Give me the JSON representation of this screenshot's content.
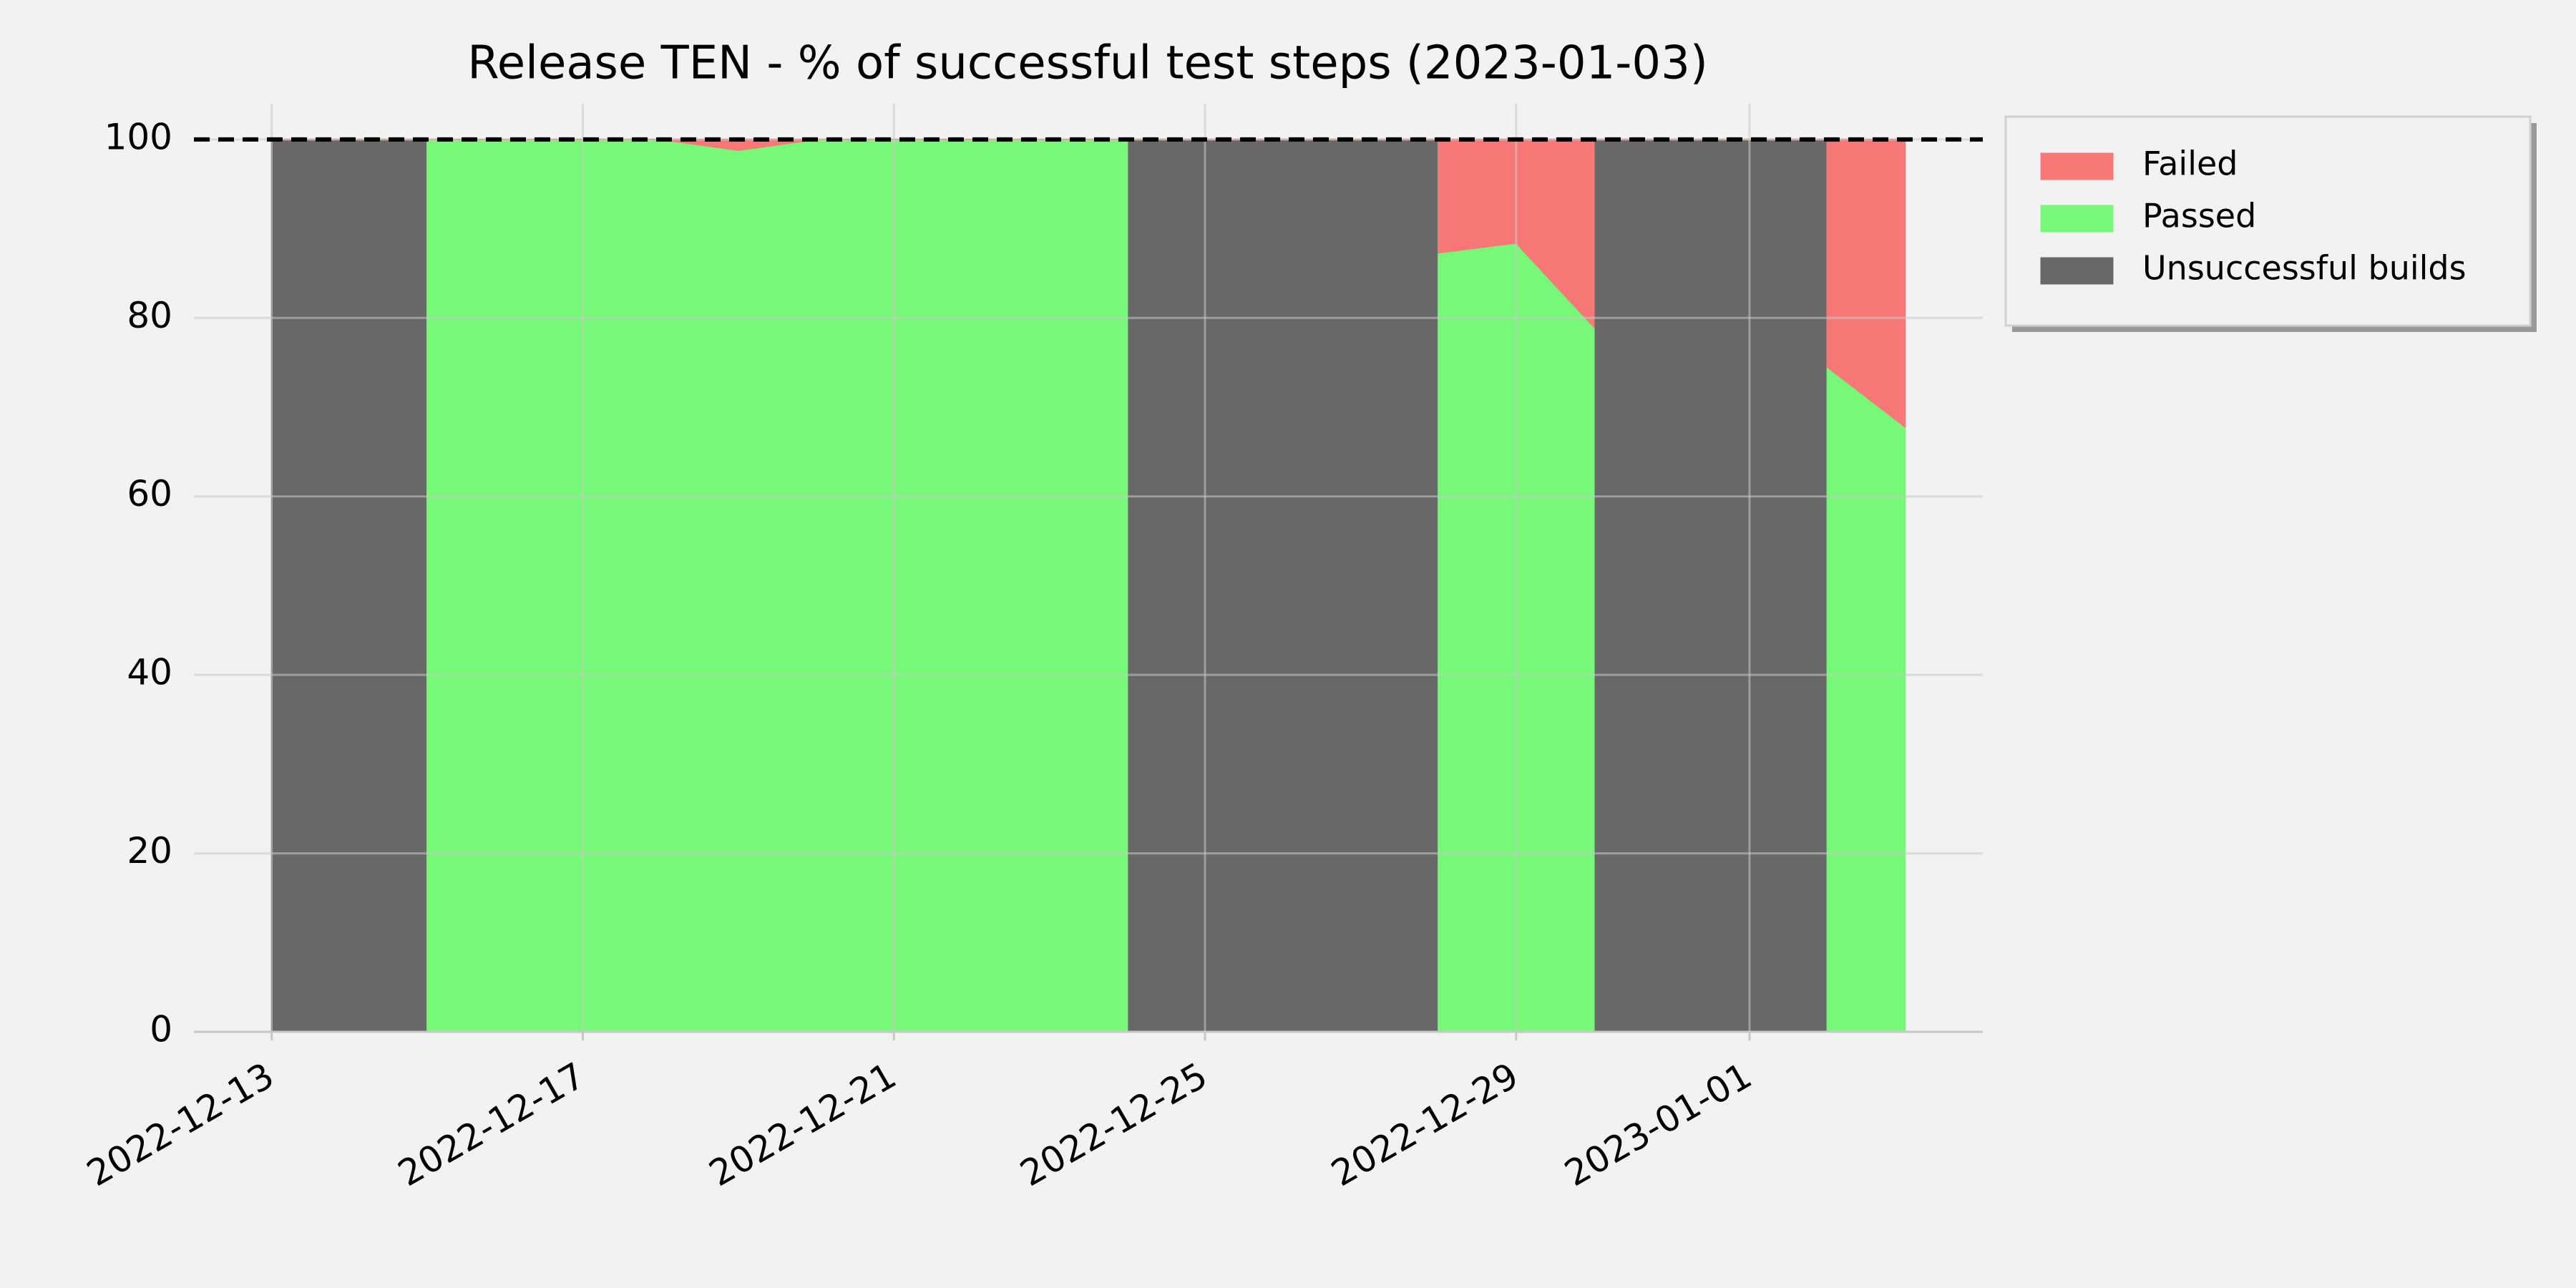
{
  "chart_data": {
    "type": "stacked_area",
    "title": "Release TEN - % of successful test steps (2023-01-03)",
    "x": [
      "2022-12-13",
      "2022-12-14",
      "2022-12-15",
      "2022-12-15",
      "2022-12-16",
      "2022-12-17",
      "2022-12-18",
      "2022-12-19",
      "2022-12-20",
      "2022-12-21",
      "2022-12-22",
      "2022-12-23",
      "2022-12-24",
      "2022-12-24",
      "2022-12-25",
      "2022-12-26",
      "2022-12-27",
      "2022-12-28",
      "2022-12-28",
      "2022-12-29",
      "2022-12-30",
      "2022-12-30",
      "2022-12-31",
      "2023-01-01",
      "2023-01-02",
      "2023-01-02",
      "2023-01-03"
    ],
    "series": [
      {
        "name": "Unsuccessful builds",
        "color": "#686868",
        "values": [
          100,
          100,
          100,
          0,
          0,
          0,
          0,
          0,
          0,
          0,
          0,
          0,
          0,
          100,
          100,
          100,
          100,
          100,
          0,
          0,
          0,
          100,
          100,
          100,
          100,
          0,
          0
        ]
      },
      {
        "name": "Passed",
        "color": "#78f878",
        "values": [
          0,
          0,
          0,
          100,
          100,
          100,
          100,
          98.8,
          100,
          100,
          100,
          100,
          100,
          0,
          0,
          0,
          0,
          0,
          87.3,
          88.4,
          79,
          0,
          0,
          0,
          0,
          74.5,
          67.8
        ]
      },
      {
        "name": "Failed",
        "color": "#f87878",
        "values": [
          0,
          0,
          0,
          0,
          0,
          0,
          0,
          1.2,
          0,
          0,
          0,
          0,
          0,
          0,
          0,
          0,
          0,
          0,
          12.7,
          11.6,
          21,
          0,
          0,
          0,
          0,
          25.5,
          32.2
        ]
      }
    ],
    "legend_order": [
      2,
      1,
      0
    ],
    "legend_position": "outside upper right",
    "xlim": [
      "2022-12-12",
      "2023-01-04"
    ],
    "xticks": [
      "2022-12-13",
      "2022-12-17",
      "2022-12-21",
      "2022-12-25",
      "2022-12-29",
      "2023-01-01"
    ],
    "ylim": [
      0,
      104
    ],
    "yticks": [
      0,
      20,
      40,
      60,
      80,
      100
    ],
    "hline": 100,
    "grid": true
  }
}
